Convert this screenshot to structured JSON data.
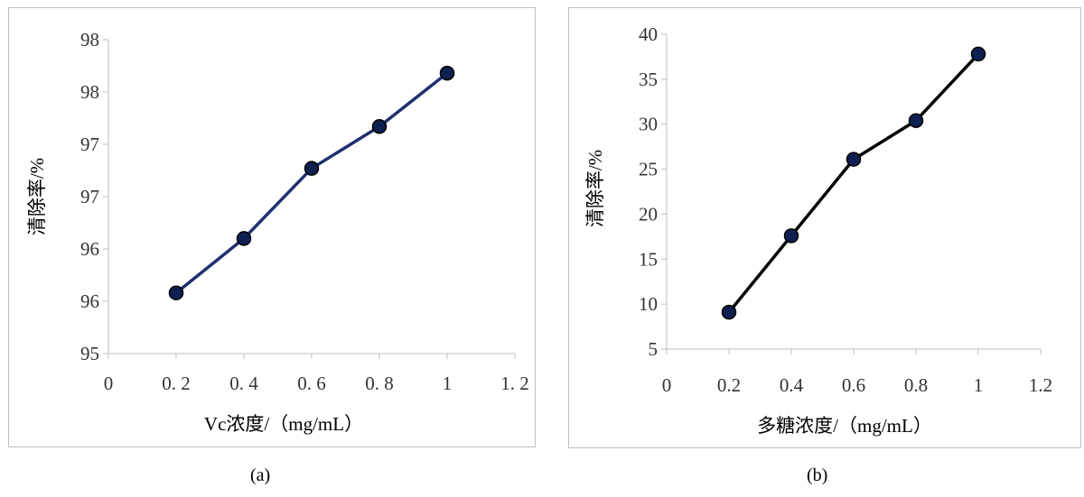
{
  "chart_data": [
    {
      "type": "line",
      "x": [
        0.2,
        0.4,
        0.6,
        0.8,
        1.0
      ],
      "series": [
        {
          "values": [
            95.58,
            96.1,
            96.77,
            97.17,
            97.68
          ]
        }
      ],
      "xlabel": "Vc浓度/（mg/mL）",
      "ylabel": "清除率/%",
      "xlim": [
        0,
        1.2
      ],
      "ylim": [
        95,
        98
      ],
      "x_ticks": [
        "0",
        "0. 2",
        "0. 4",
        "0. 6",
        "0. 8",
        "1",
        "1. 2"
      ],
      "y_ticks": [
        "95",
        "96",
        "96",
        "97",
        "97",
        "98",
        "98"
      ],
      "grid": false,
      "line_color": "#1f3070",
      "marker_color": "#0e1f52",
      "caption": "(a)"
    },
    {
      "type": "line",
      "x": [
        0.2,
        0.4,
        0.6,
        0.8,
        1.0
      ],
      "series": [
        {
          "values": [
            9.1,
            17.6,
            26.1,
            30.4,
            37.8
          ]
        }
      ],
      "xlabel": "多糖浓度/（mg/mL）",
      "ylabel": "清除率/%",
      "xlim": [
        0,
        1.2
      ],
      "ylim": [
        5,
        40
      ],
      "x_ticks": [
        "0",
        "0.2",
        "0.4",
        "0.6",
        "0.8",
        "1",
        "1.2"
      ],
      "y_ticks": [
        "5",
        "10",
        "15",
        "20",
        "25",
        "30",
        "35",
        "40"
      ],
      "grid": false,
      "line_color": "#000000",
      "marker_color": "#0e1f52",
      "caption": "(b)"
    }
  ]
}
